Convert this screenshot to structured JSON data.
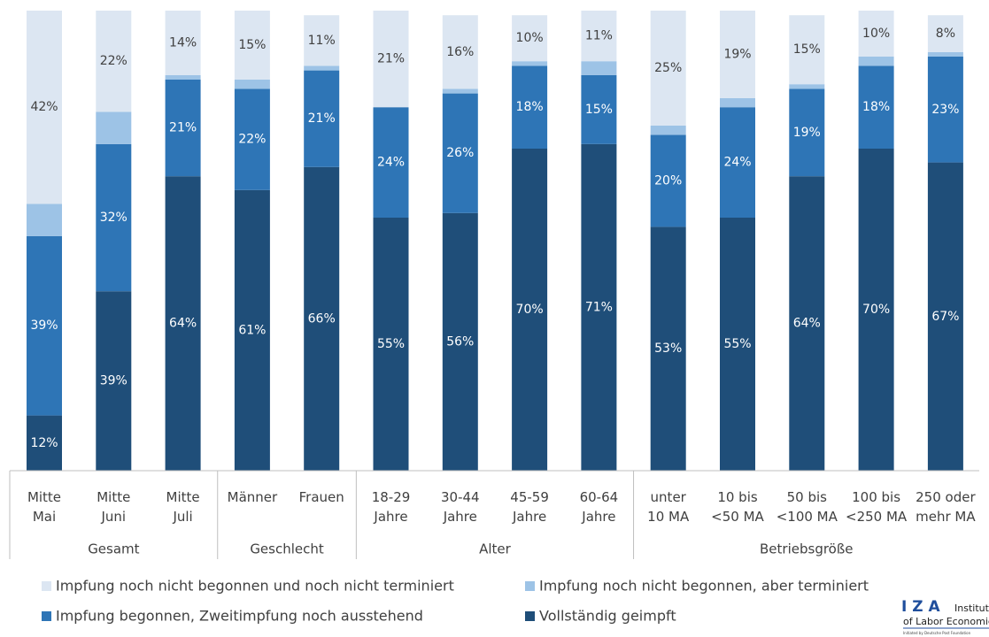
{
  "chart_data": {
    "type": "stacked_bar",
    "categories": [
      "Mitte\nMai",
      "Mitte\nJuni",
      "Mitte\nJuli",
      "Männer",
      "Frauen",
      "18-29\nJahre",
      "30-44\nJahre",
      "45-59\nJahre",
      "60-64\nJahre",
      "unter\n10 MA",
      "10 bis\n<50 MA",
      "50 bis\n<100 MA",
      "100 bis\n<250 MA",
      "250 oder\nmehr MA"
    ],
    "groups": [
      {
        "name": "Gesamt",
        "size": 3
      },
      {
        "name": "Geschlecht",
        "size": 2
      },
      {
        "name": "Alter",
        "size": 4
      },
      {
        "name": "Betriebsgröße",
        "size": 5
      }
    ],
    "ylim": [
      0,
      100
    ],
    "series": [
      {
        "name": "Vollständig geimpft",
        "color": "#1f4e79",
        "label_color": "#ffffff",
        "values": [
          12,
          39,
          64,
          61,
          66,
          55,
          56,
          70,
          71,
          53,
          55,
          64,
          70,
          67
        ],
        "value_labels": [
          "12%",
          "39%",
          "64%",
          "61%",
          "66%",
          "55%",
          "56%",
          "70%",
          "71%",
          "53%",
          "55%",
          "64%",
          "70%",
          "67%"
        ]
      },
      {
        "name": "Impfung begonnen, Zweitimpfung noch ausstehend",
        "color": "#2e75b6",
        "label_color": "#ffffff",
        "values": [
          39,
          32,
          21,
          22,
          21,
          24,
          26,
          18,
          15,
          20,
          24,
          19,
          18,
          23
        ],
        "value_labels": [
          "39%",
          "32%",
          "21%",
          "22%",
          "21%",
          "24%",
          "26%",
          "18%",
          "15%",
          "20%",
          "24%",
          "19%",
          "18%",
          "23%"
        ]
      },
      {
        "name": "Impfung noch nicht begonnen, aber terminiert",
        "color": "#9dc3e6",
        "values": [
          7,
          7,
          1,
          2,
          1,
          0,
          1,
          1,
          3,
          2,
          2,
          1,
          2,
          1
        ]
      },
      {
        "name": "Impfung noch nicht begonnen und noch nicht terminiert",
        "color": "#dce6f2",
        "label_color": "#404040",
        "values": [
          42,
          22,
          14,
          15,
          11,
          21,
          16,
          10,
          11,
          25,
          19,
          15,
          10,
          8
        ],
        "value_labels": [
          "42%",
          "22%",
          "14%",
          "15%",
          "11%",
          "21%",
          "16%",
          "10%",
          "11%",
          "25%",
          "19%",
          "15%",
          "10%",
          "8%"
        ]
      }
    ]
  },
  "logo": {
    "letters": "I Z A",
    "name": "Institute",
    "line2": "of Labor Economics",
    "line3": "Initiated by Deutsche Post Foundation"
  }
}
